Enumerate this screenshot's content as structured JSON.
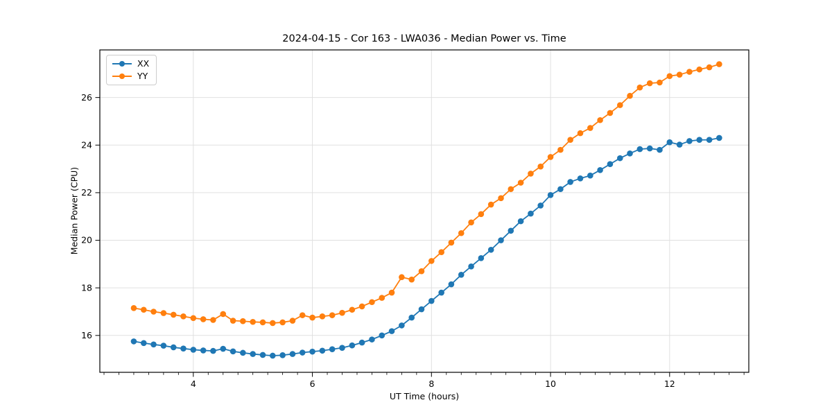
{
  "chart_data": {
    "type": "line",
    "title": "2024-04-15 - Cor 163 - LWA036 - Median Power vs. Time",
    "xlabel": "UT Time (hours)",
    "ylabel": "Median Power (CPU)",
    "xlim": [
      2.43,
      13.33
    ],
    "ylim": [
      14.45,
      28.0
    ],
    "xticks": [
      4,
      6,
      8,
      10,
      12
    ],
    "yticks": [
      16,
      18,
      20,
      22,
      24,
      26
    ],
    "x_minor_step": 0.25,
    "grid": true,
    "background": "#ffffff",
    "grid_color": "#e0e0e0",
    "axis_color": "#000000",
    "legend": {
      "position": "upper left",
      "entries": [
        {
          "label": "XX",
          "color": "#1f77b4"
        },
        {
          "label": "YY",
          "color": "#ff7f0e"
        }
      ]
    },
    "x": [
      3.0,
      3.167,
      3.333,
      3.5,
      3.667,
      3.833,
      4.0,
      4.167,
      4.333,
      4.5,
      4.667,
      4.833,
      5.0,
      5.167,
      5.333,
      5.5,
      5.667,
      5.833,
      6.0,
      6.167,
      6.333,
      6.5,
      6.667,
      6.833,
      7.0,
      7.167,
      7.333,
      7.5,
      7.667,
      7.833,
      8.0,
      8.167,
      8.333,
      8.5,
      8.667,
      8.833,
      9.0,
      9.167,
      9.333,
      9.5,
      9.667,
      9.833,
      10.0,
      10.167,
      10.333,
      10.5,
      10.667,
      10.833,
      11.0,
      11.167,
      11.333,
      11.5,
      11.667,
      11.833,
      12.0,
      12.167,
      12.333,
      12.5,
      12.667,
      12.833
    ],
    "series": [
      {
        "name": "XX",
        "color": "#1f77b4",
        "values": [
          15.75,
          15.68,
          15.62,
          15.57,
          15.5,
          15.45,
          15.4,
          15.37,
          15.35,
          15.44,
          15.33,
          15.27,
          15.22,
          15.18,
          15.15,
          15.17,
          15.22,
          15.28,
          15.32,
          15.36,
          15.42,
          15.48,
          15.58,
          15.7,
          15.83,
          16.0,
          16.18,
          16.42,
          16.75,
          17.1,
          17.45,
          17.8,
          18.15,
          18.55,
          18.9,
          19.25,
          19.6,
          20.0,
          20.4,
          20.8,
          21.12,
          21.46,
          21.9,
          22.15,
          22.45,
          22.6,
          22.72,
          22.95,
          23.2,
          23.45,
          23.65,
          23.83,
          23.86,
          23.8,
          24.12,
          24.02,
          24.17,
          24.22,
          24.22,
          24.3
        ]
      },
      {
        "name": "YY",
        "color": "#ff7f0e",
        "values": [
          17.15,
          17.08,
          17.0,
          16.94,
          16.87,
          16.8,
          16.73,
          16.68,
          16.65,
          16.9,
          16.62,
          16.6,
          16.57,
          16.55,
          16.52,
          16.55,
          16.62,
          16.85,
          16.75,
          16.8,
          16.85,
          16.95,
          17.08,
          17.22,
          17.4,
          17.58,
          17.8,
          18.45,
          18.35,
          18.7,
          19.13,
          19.5,
          19.9,
          20.3,
          20.75,
          21.1,
          21.5,
          21.77,
          22.15,
          22.42,
          22.8,
          23.1,
          23.5,
          23.8,
          24.22,
          24.5,
          24.72,
          25.05,
          25.35,
          25.68,
          26.07,
          26.42,
          26.6,
          26.63,
          26.9,
          26.96,
          27.08,
          27.18,
          27.27,
          27.4
        ]
      }
    ]
  }
}
